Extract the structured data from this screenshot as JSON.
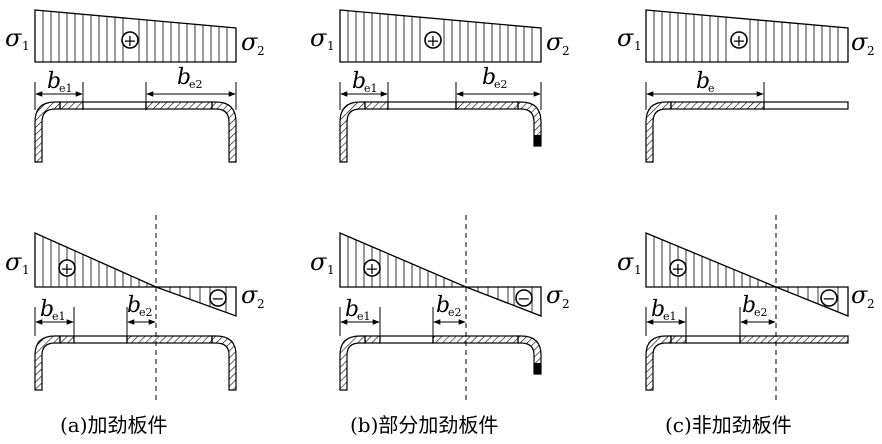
{
  "panels": [
    {
      "caption": "(a)加劲板件",
      "top": {
        "sigma1": "σ",
        "sigma1_sub": "1",
        "sigma2": "σ",
        "sigma2_sub": "2",
        "sign": "+",
        "be_left": "b",
        "be_left_sub": "e1",
        "be_right": "b",
        "be_right_sub": "e2"
      },
      "bottom": {
        "sigma1": "σ",
        "sigma1_sub": "1",
        "sigma2": "σ",
        "sigma2_sub": "2",
        "sign_pos": "+",
        "sign_neg": "−",
        "be_left": "b",
        "be_left_sub": "e1",
        "be_right": "b",
        "be_right_sub": "e2"
      }
    },
    {
      "caption": "(b)部分加劲板件",
      "top": {
        "sigma1": "σ",
        "sigma1_sub": "1",
        "sigma2": "σ",
        "sigma2_sub": "2",
        "sign": "+",
        "be_left": "b",
        "be_left_sub": "e1",
        "be_right": "b",
        "be_right_sub": "e2"
      },
      "bottom": {
        "sigma1": "σ",
        "sigma1_sub": "1",
        "sigma2": "σ",
        "sigma2_sub": "2",
        "sign_pos": "+",
        "sign_neg": "−",
        "be_left": "b",
        "be_left_sub": "e1",
        "be_right": "b",
        "be_right_sub": "e2"
      }
    },
    {
      "caption": "(c)非加劲板件",
      "top": {
        "sigma1": "σ",
        "sigma1_sub": "1",
        "sigma2": "σ",
        "sigma2_sub": "2",
        "sign": "+",
        "be": "b",
        "be_sub": "e"
      },
      "bottom": {
        "sigma1": "σ",
        "sigma1_sub": "1",
        "sigma2": "σ",
        "sigma2_sub": "2",
        "sign_pos": "+",
        "sign_neg": "−",
        "be_left": "b",
        "be_left_sub": "e1",
        "be_right": "b",
        "be_right_sub": "e2"
      }
    }
  ]
}
